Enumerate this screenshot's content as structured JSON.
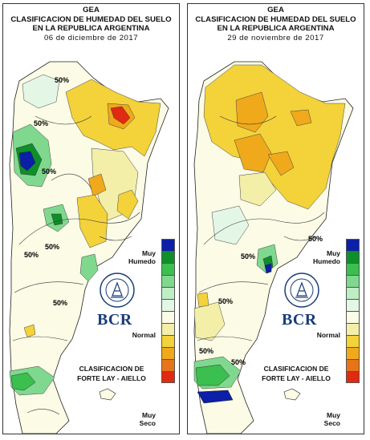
{
  "panels": [
    {
      "org": "GEA",
      "title_line1": "CLASIFICACION DE HUMEDAD DEL SUELO",
      "title_line2": "EN LA REPUBLICA ARGENTINA",
      "date": "06 de diciembre de 2017",
      "contour_labels": [
        "50%",
        "50%",
        "50%",
        "50%",
        "50%",
        "50%"
      ]
    },
    {
      "org": "GEA",
      "title_line1": "CLASIFICACION DE HUMEDAD DEL SUELO",
      "title_line2": "EN LA REPUBLICA ARGENTINA",
      "date": "29 de noviembre de 2017",
      "contour_labels": [
        "50%",
        "50%",
        "50%",
        "50%",
        "50%"
      ]
    }
  ],
  "legend": {
    "top_label_1": "Muy",
    "top_label_2": "Humedo",
    "mid_label": "Normal",
    "bottom_label_1": "Muy",
    "bottom_label_2": "Seco",
    "colors": [
      "#0b1fa8",
      "#0e8f2a",
      "#3bbf4f",
      "#7fd88e",
      "#bfeec5",
      "#e4f7e6",
      "#fbfbe6",
      "#f3eea8",
      "#f3d23a",
      "#f0a91a",
      "#e8741a",
      "#e22a10"
    ]
  },
  "classification": {
    "line1": "CLASIFICACION DE",
    "line2": "FORTE LAY - AIELLO"
  },
  "logo": {
    "text": "BCR",
    "seal_text": "BOLSA DE COMERCIO DE ROSARIO",
    "colors": {
      "brand": "#1a3d7a"
    }
  }
}
